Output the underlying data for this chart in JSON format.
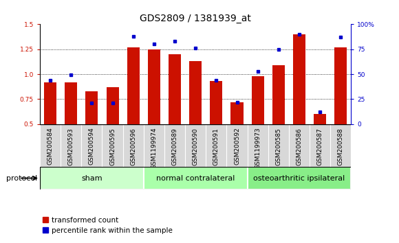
{
  "title": "GDS2809 / 1381939_at",
  "samples": [
    "GSM200584",
    "GSM200593",
    "GSM200594",
    "GSM200595",
    "GSM200596",
    "GSM1199974",
    "GSM200589",
    "GSM200590",
    "GSM200591",
    "GSM200592",
    "GSM1199973",
    "GSM200585",
    "GSM200586",
    "GSM200587",
    "GSM200588"
  ],
  "red_values": [
    0.92,
    0.92,
    0.83,
    0.87,
    1.27,
    1.25,
    1.2,
    1.13,
    0.93,
    0.72,
    0.98,
    1.09,
    1.4,
    0.6,
    1.27
  ],
  "blue_pct": [
    44,
    49,
    21,
    21,
    88,
    80,
    83,
    76,
    44,
    22,
    53,
    75,
    90,
    12,
    87
  ],
  "groups": [
    {
      "label": "sham",
      "start": 0,
      "end": 5,
      "color": "#ccffcc"
    },
    {
      "label": "normal contralateral",
      "start": 5,
      "end": 10,
      "color": "#aaffaa"
    },
    {
      "label": "osteoarthritic ipsilateral",
      "start": 10,
      "end": 15,
      "color": "#88ee88"
    }
  ],
  "ylim_left": [
    0.5,
    1.5
  ],
  "ylim_right": [
    0,
    100
  ],
  "yticks_left": [
    0.5,
    0.75,
    1.0,
    1.25,
    1.5
  ],
  "yticks_right": [
    0,
    25,
    50,
    75,
    100
  ],
  "ytick_labels_right": [
    "0",
    "25",
    "50",
    "75",
    "100%"
  ],
  "bar_color": "#cc1100",
  "dot_color": "#0000cc",
  "bar_width": 0.6,
  "title_fontsize": 10,
  "tick_fontsize": 6.5,
  "legend_fontsize": 7.5,
  "group_label_fontsize": 8,
  "protocol_fontsize": 8
}
